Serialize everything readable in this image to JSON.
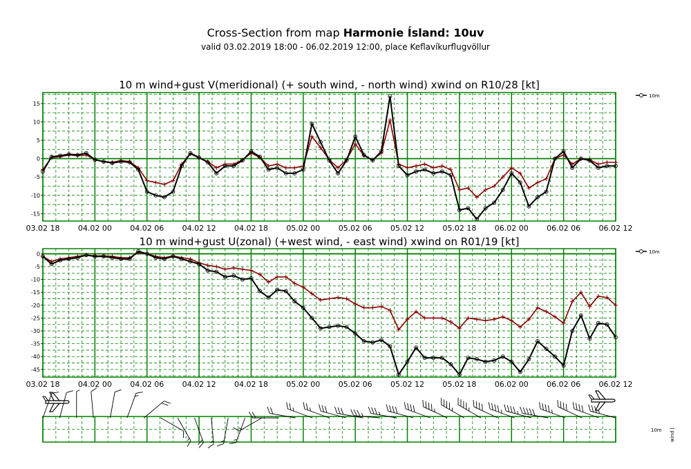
{
  "header": {
    "title_prefix": "Cross-Section from map ",
    "title_bold": "Harmonie Ísland: 10uv",
    "subtitle": "valid 03.02.2019 18:00 - 06.02.2019 12:00, place Keflavíkurflugvöllur"
  },
  "colors": {
    "grid": "#008000",
    "wind": "#000000",
    "gust": "#8b0000"
  },
  "x_tick_labels": [
    "03.02 18",
    "04.02 00",
    "04.02 06",
    "04.02 12",
    "04.02 18",
    "05.02 00",
    "05.02 06",
    "05.02 12",
    "05.02 18",
    "06.02 00",
    "06.02 06",
    "06.02 12"
  ],
  "chart_data": [
    {
      "type": "line",
      "title": "10 m wind+gust V(meridional) (+ south wind, - north wind) xwind on R10/28 [kt]",
      "x_unit": "hours since 03.02 18",
      "ylim": [
        -17,
        18
      ],
      "yticks": [
        15,
        10,
        5,
        0,
        -5,
        -10,
        -15
      ],
      "grid": true,
      "legend": "top-right",
      "legend_label": "10m",
      "x": [
        0,
        1,
        2,
        3,
        4,
        5,
        6,
        7,
        8,
        9,
        10,
        11,
        12,
        13,
        14,
        15,
        16,
        17,
        18,
        19,
        20,
        21,
        22,
        23,
        24,
        25,
        26,
        27,
        28,
        29,
        30,
        31,
        32,
        33,
        34,
        35,
        36,
        37,
        38,
        39,
        40,
        41,
        42,
        43,
        44,
        45,
        46,
        47,
        48,
        49,
        50,
        51,
        52,
        53,
        54,
        55,
        56,
        57,
        58,
        59,
        60,
        61,
        62,
        63,
        64,
        65,
        66
      ],
      "series": [
        {
          "name": "10m",
          "values": [
            -3.5,
            0.5,
            0.8,
            1.2,
            1.0,
            1.5,
            -0.3,
            -0.8,
            -1.2,
            -0.8,
            -1.0,
            -3.0,
            -9.0,
            -10.0,
            -10.5,
            -9.0,
            -2.0,
            1.5,
            0.3,
            -1.0,
            -4.0,
            -2.0,
            -2.0,
            -0.5,
            2.0,
            0.5,
            -3.0,
            -2.5,
            -4.0,
            -4.0,
            -3.0,
            9.5,
            4.5,
            -0.5,
            -4.0,
            -0.5,
            6.0,
            1.0,
            -0.5,
            2.0,
            17.0,
            -2.0,
            -4.5,
            -3.5,
            -3.0,
            -4.0,
            -3.5,
            -4.5,
            -14.0,
            -13.5,
            -16.5,
            -13.5,
            -12.0,
            -8.5,
            -4.0,
            -6.5,
            -13.0,
            -10.5,
            -9.0,
            0.0,
            2.0,
            -2.5,
            0.0,
            -0.5,
            -2.5,
            -2.0,
            -2.0
          ]
        },
        {
          "name": "",
          "values": [
            -3.0,
            0.3,
            0.5,
            1.0,
            0.8,
            1.0,
            -0.3,
            -0.8,
            -1.0,
            -0.5,
            -0.8,
            -2.5,
            -6.0,
            -6.5,
            -7.0,
            -6.0,
            -1.5,
            1.3,
            0.2,
            -0.8,
            -2.5,
            -1.5,
            -1.5,
            -0.3,
            1.5,
            0.3,
            -2.0,
            -1.5,
            -2.5,
            -2.5,
            -2.0,
            6.0,
            3.0,
            -0.3,
            -2.5,
            -0.3,
            4.0,
            0.8,
            -0.3,
            1.5,
            10.5,
            -1.5,
            -2.5,
            -2.0,
            -1.5,
            -2.5,
            -2.0,
            -3.0,
            -8.5,
            -8.0,
            -10.5,
            -8.5,
            -7.5,
            -5.0,
            -2.5,
            -4.0,
            -8.0,
            -6.5,
            -5.5,
            0.0,
            1.0,
            -1.5,
            0.0,
            -0.3,
            -1.5,
            -1.0,
            -1.0
          ]
        }
      ]
    },
    {
      "type": "line",
      "title": "10 m wind+gust U(zonal) (+west wind, - east wind) xwind on R01/19 [kt]",
      "x_unit": "hours since 03.02 18",
      "ylim": [
        -48,
        2
      ],
      "yticks": [
        0,
        -5,
        -10,
        -15,
        -20,
        -25,
        -30,
        -35,
        -40,
        -45
      ],
      "grid": true,
      "legend": "top-right",
      "legend_label": "10m",
      "x": [
        0,
        1,
        2,
        3,
        4,
        5,
        6,
        7,
        8,
        9,
        10,
        11,
        12,
        13,
        14,
        15,
        16,
        17,
        18,
        19,
        20,
        21,
        22,
        23,
        24,
        25,
        26,
        27,
        28,
        29,
        30,
        31,
        32,
        33,
        34,
        35,
        36,
        37,
        38,
        39,
        40,
        41,
        42,
        43,
        44,
        45,
        46,
        47,
        48,
        49,
        50,
        51,
        52,
        53,
        54,
        55,
        56,
        57,
        58,
        59,
        60,
        61,
        62,
        63,
        64,
        65,
        66
      ],
      "series": [
        {
          "name": "10m",
          "values": [
            -1.0,
            -4.0,
            -2.5,
            -2.0,
            -1.5,
            -0.5,
            -1.0,
            -1.0,
            -1.5,
            -2.0,
            -2.0,
            1.0,
            0.0,
            -1.5,
            -2.0,
            -1.0,
            -2.0,
            -3.0,
            -4.0,
            -6.5,
            -7.0,
            -9.0,
            -8.5,
            -10.0,
            -9.5,
            -14.5,
            -17.0,
            -14.0,
            -14.5,
            -18.5,
            -21.0,
            -25.0,
            -29.0,
            -28.5,
            -28.0,
            -28.5,
            -31.0,
            -34.0,
            -34.5,
            -33.5,
            -36.0,
            -47.0,
            -42.0,
            -36.5,
            -40.5,
            -40.5,
            -40.5,
            -43.0,
            -47.0,
            -40.5,
            -41.0,
            -42.0,
            -41.5,
            -40.0,
            -42.0,
            -46.0,
            -41.0,
            -34.0,
            -37.0,
            -40.0,
            -43.5,
            -30.0,
            -24.0,
            -33.0,
            -27.0,
            -27.5,
            -32.5
          ]
        },
        {
          "name": "",
          "values": [
            -1.0,
            -3.0,
            -2.0,
            -1.5,
            -1.0,
            -0.5,
            -0.8,
            -0.8,
            -1.0,
            -1.5,
            -1.5,
            0.5,
            0.0,
            -1.0,
            -1.5,
            -0.8,
            -1.5,
            -2.0,
            -3.5,
            -4.5,
            -5.0,
            -6.0,
            -5.5,
            -6.0,
            -6.5,
            -8.0,
            -11.0,
            -9.0,
            -9.0,
            -11.5,
            -13.0,
            -15.5,
            -18.0,
            -17.5,
            -17.0,
            -17.5,
            -19.5,
            -21.0,
            -21.0,
            -20.5,
            -22.0,
            -29.5,
            -25.5,
            -22.5,
            -25.0,
            -25.0,
            -25.0,
            -26.5,
            -29.0,
            -25.0,
            -25.5,
            -26.0,
            -25.5,
            -24.5,
            -26.0,
            -28.5,
            -25.5,
            -21.0,
            -22.5,
            -24.5,
            -27.0,
            -18.5,
            -15.0,
            -20.5,
            -16.5,
            -17.0,
            -20.0
          ]
        }
      ]
    }
  ],
  "wind_panel": {
    "legend_label": "10m",
    "axis_label": "wind [",
    "barbs": [
      {
        "dir": 200,
        "speed": 10
      },
      {
        "dir": 195,
        "speed": 12
      },
      {
        "dir": 180,
        "speed": 8
      },
      {
        "dir": 175,
        "speed": 10
      },
      {
        "dir": 190,
        "speed": 12
      },
      {
        "dir": 200,
        "speed": 15
      },
      {
        "dir": 230,
        "speed": 20
      },
      {
        "dir": 300,
        "speed": 10
      },
      {
        "dir": 330,
        "speed": 18
      },
      {
        "dir": 340,
        "speed": 20
      },
      {
        "dir": 355,
        "speed": 15
      },
      {
        "dir": 10,
        "speed": 18
      },
      {
        "dir": 20,
        "speed": 18
      },
      {
        "dir": 60,
        "speed": 18
      },
      {
        "dir": 90,
        "speed": 20
      },
      {
        "dir": 100,
        "speed": 22
      },
      {
        "dir": 110,
        "speed": 25
      },
      {
        "dir": 110,
        "speed": 28
      },
      {
        "dir": 105,
        "speed": 30
      },
      {
        "dir": 100,
        "speed": 32
      },
      {
        "dir": 95,
        "speed": 35
      },
      {
        "dir": 100,
        "speed": 38
      },
      {
        "dir": 105,
        "speed": 40
      },
      {
        "dir": 110,
        "speed": 40
      },
      {
        "dir": 115,
        "speed": 45
      },
      {
        "dir": 120,
        "speed": 48
      },
      {
        "dir": 120,
        "speed": 45
      },
      {
        "dir": 115,
        "speed": 42
      },
      {
        "dir": 110,
        "speed": 45
      },
      {
        "dir": 105,
        "speed": 48
      },
      {
        "dir": 100,
        "speed": 50
      },
      {
        "dir": 110,
        "speed": 48
      },
      {
        "dir": 115,
        "speed": 42
      },
      {
        "dir": 110,
        "speed": 40
      },
      {
        "dir": 105,
        "speed": 38
      }
    ]
  }
}
